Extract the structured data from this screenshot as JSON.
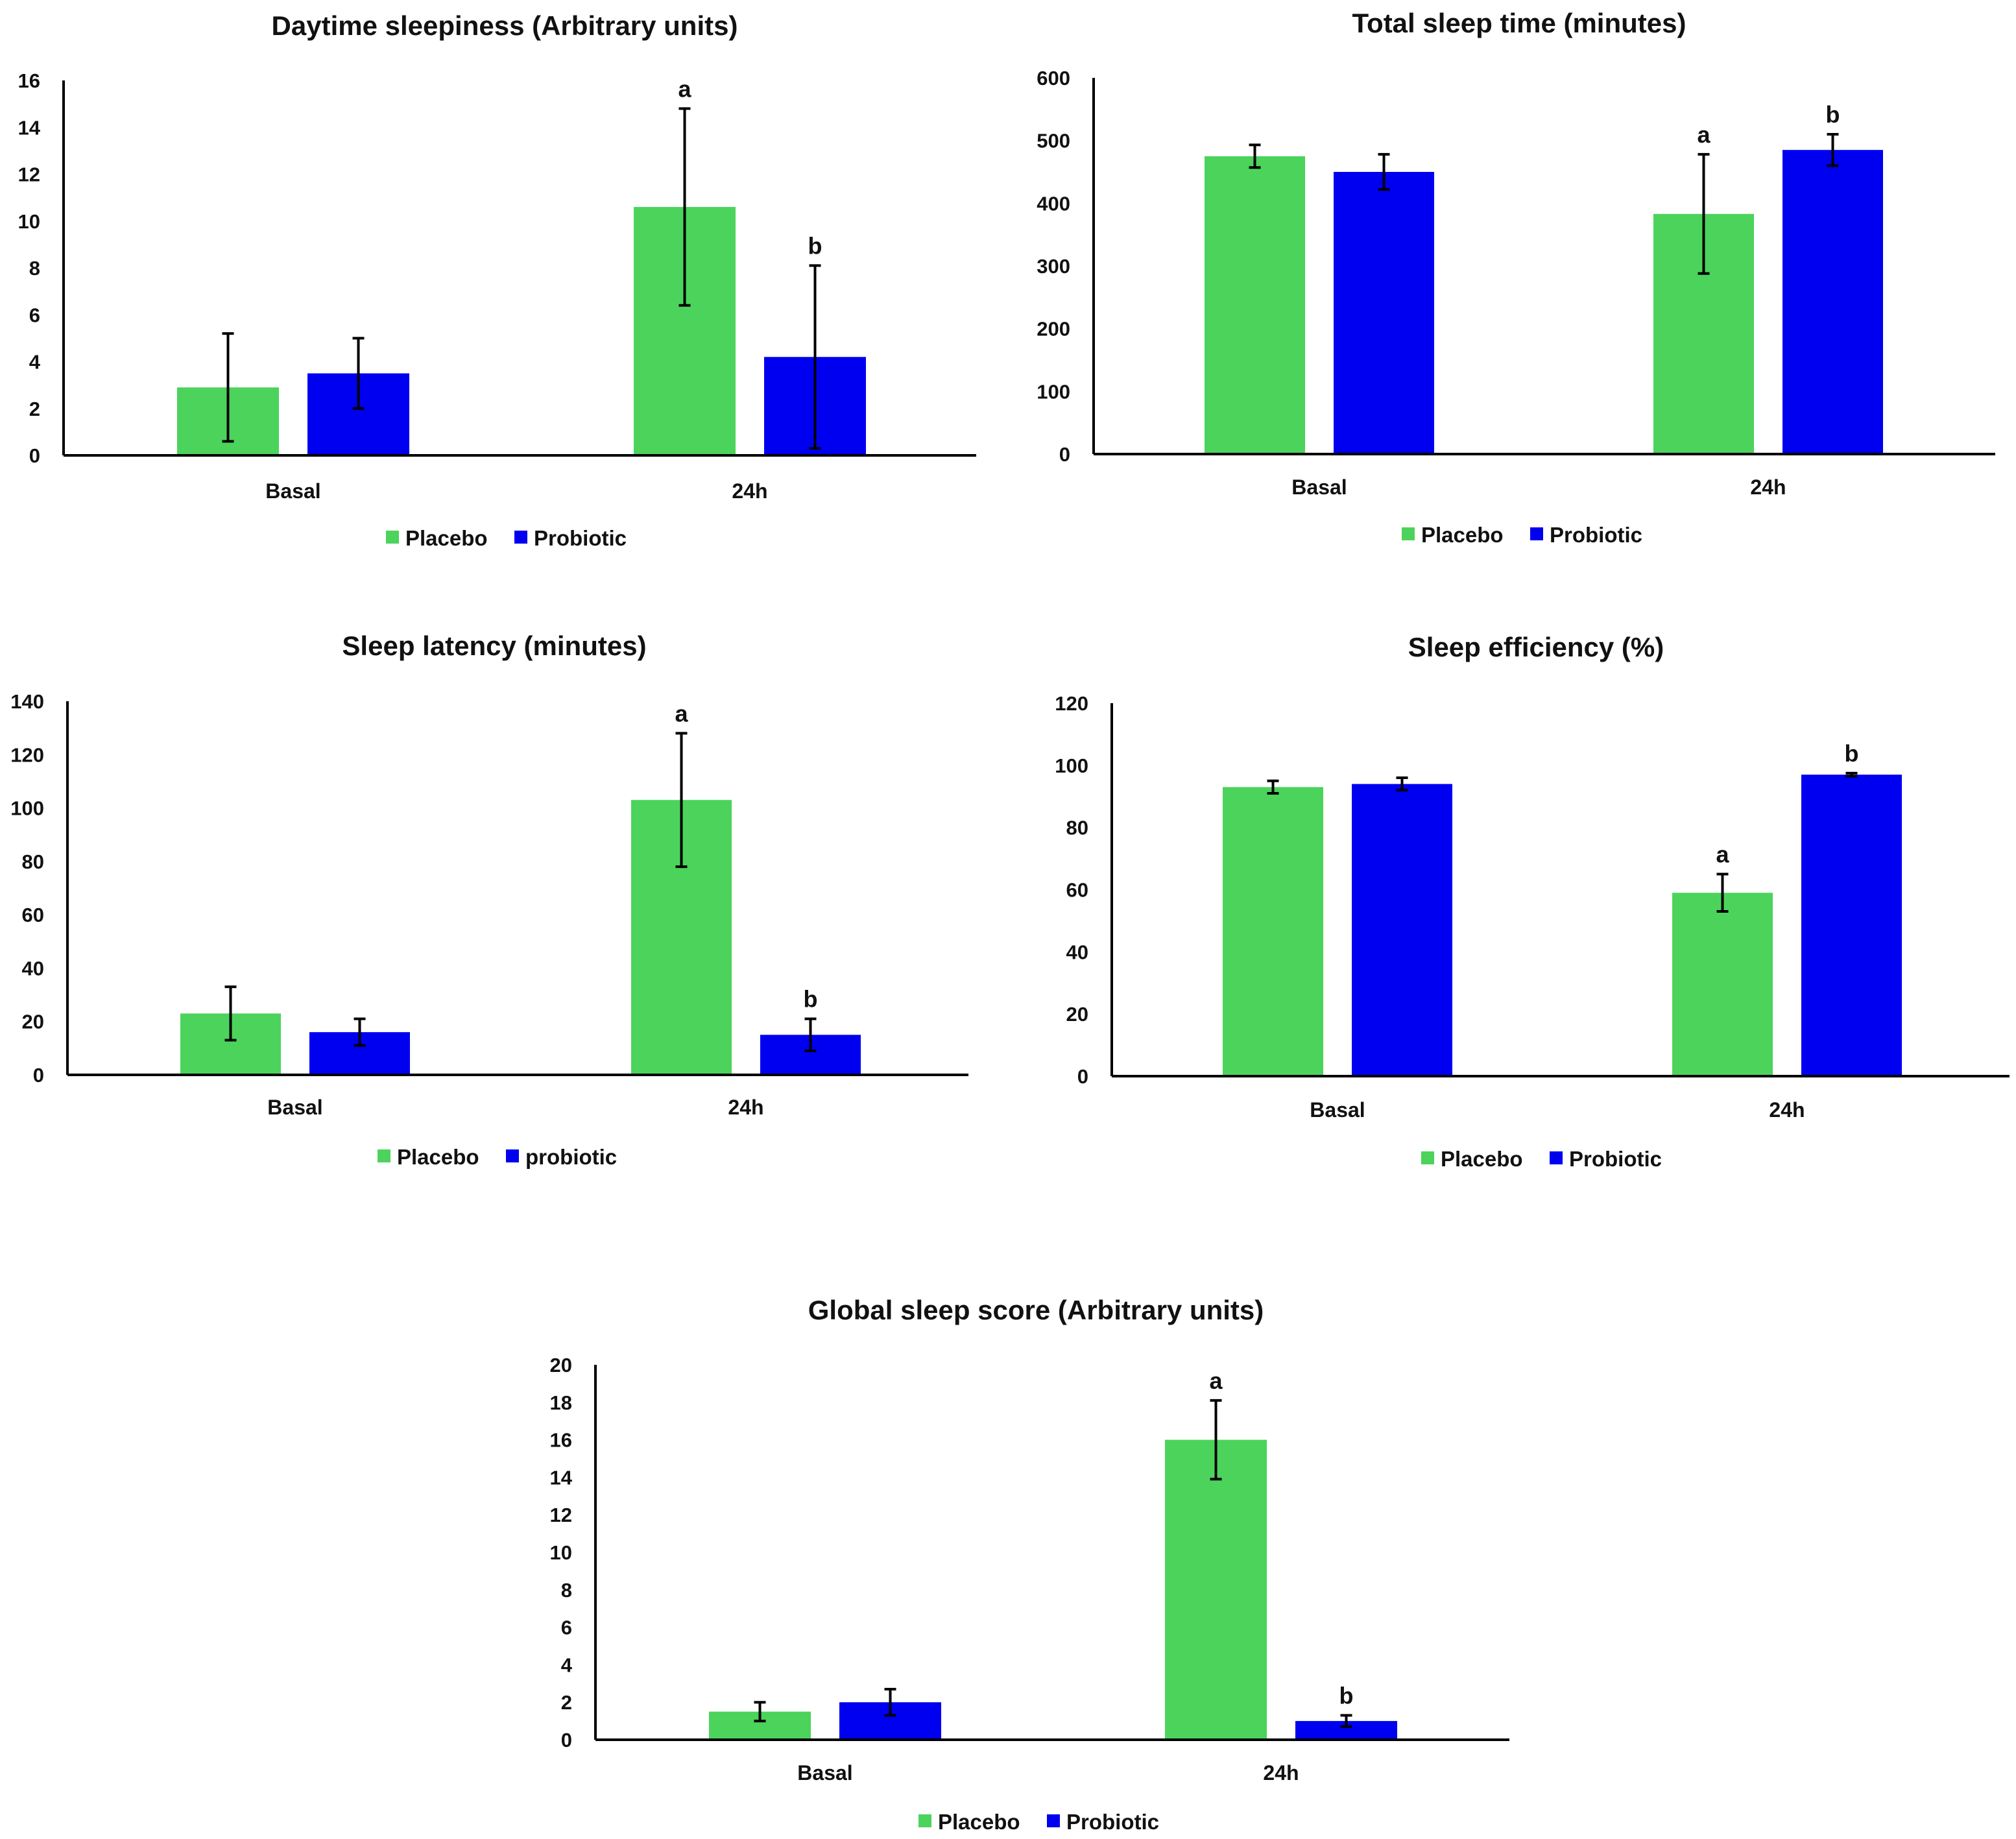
{
  "chart_data": [
    {
      "type": "bar",
      "title": "Daytime sleepiness (Arbitrary units)",
      "categories": [
        "Basal",
        "24h"
      ],
      "ylim": [
        0,
        16
      ],
      "yticks": [
        0,
        2,
        4,
        6,
        8,
        10,
        12,
        14,
        16
      ],
      "series": [
        {
          "name": "Placebo",
          "color": "#4cd35c",
          "values": [
            2.9,
            10.6
          ],
          "errors": [
            2.3,
            4.2
          ],
          "sig": [
            "",
            "a"
          ]
        },
        {
          "name": "Probiotic",
          "color": "#0000f0",
          "values": [
            3.5,
            4.2
          ],
          "errors": [
            1.5,
            3.9
          ],
          "sig": [
            "",
            "b"
          ]
        }
      ]
    },
    {
      "type": "bar",
      "title": "Total sleep time (minutes)",
      "categories": [
        "Basal",
        "24h"
      ],
      "ylim": [
        0,
        600
      ],
      "yticks": [
        0,
        100,
        200,
        300,
        400,
        500,
        600
      ],
      "series": [
        {
          "name": "Placebo",
          "color": "#4cd35c",
          "values": [
            475,
            383
          ],
          "errors": [
            18,
            95
          ],
          "sig": [
            "",
            "a"
          ]
        },
        {
          "name": "Probiotic",
          "color": "#0000f0",
          "values": [
            450,
            485
          ],
          "errors": [
            28,
            25
          ],
          "sig": [
            "",
            "b"
          ]
        }
      ]
    },
    {
      "type": "bar",
      "title": "Sleep latency (minutes)",
      "categories": [
        "Basal",
        "24h"
      ],
      "ylim": [
        0,
        140
      ],
      "yticks": [
        0,
        20,
        40,
        60,
        80,
        100,
        120,
        140
      ],
      "series": [
        {
          "name": "Placebo",
          "color": "#4cd35c",
          "values": [
            23,
            103
          ],
          "errors": [
            10,
            25
          ],
          "sig": [
            "",
            "a"
          ]
        },
        {
          "name": "probiotic",
          "color": "#0000f0",
          "values": [
            16,
            15
          ],
          "errors": [
            5,
            6
          ],
          "sig": [
            "",
            "b"
          ]
        }
      ]
    },
    {
      "type": "bar",
      "title": "Sleep efficiency (%)",
      "categories": [
        "Basal",
        "24h"
      ],
      "ylim": [
        0,
        120
      ],
      "yticks": [
        0,
        20,
        40,
        60,
        80,
        100,
        120
      ],
      "series": [
        {
          "name": "Placebo",
          "color": "#4cd35c",
          "values": [
            93,
            59
          ],
          "errors": [
            2,
            6
          ],
          "sig": [
            "",
            "a"
          ]
        },
        {
          "name": "Probiotic",
          "color": "#0000f0",
          "values": [
            94,
            97
          ],
          "errors": [
            2,
            0.5
          ],
          "sig": [
            "",
            "b"
          ]
        }
      ]
    },
    {
      "type": "bar",
      "title": "Global sleep score (Arbitrary units)",
      "categories": [
        "Basal",
        "24h"
      ],
      "ylim": [
        0,
        20
      ],
      "yticks": [
        0,
        2,
        4,
        6,
        8,
        10,
        12,
        14,
        16,
        18,
        20
      ],
      "series": [
        {
          "name": "Placebo",
          "color": "#4cd35c",
          "values": [
            1.5,
            16
          ],
          "errors": [
            0.5,
            2.1
          ],
          "sig": [
            "",
            "a"
          ]
        },
        {
          "name": "Probiotic",
          "color": "#0000f0",
          "values": [
            2.0,
            1.0
          ],
          "errors": [
            0.7,
            0.3
          ],
          "sig": [
            "",
            "b"
          ]
        }
      ]
    }
  ]
}
